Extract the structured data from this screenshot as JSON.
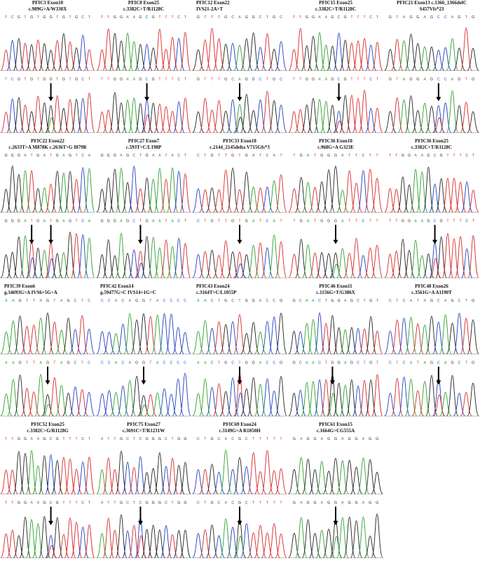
{
  "colors": {
    "A": "#2ca02c",
    "C": "#1f3fbf",
    "G": "#222222",
    "T": "#d62728",
    "arrow": "#000000"
  },
  "panels": [
    {
      "title": "PFIC3  Exon10",
      "mutation": "c.989G>A/W330X",
      "seq": "TCGTGTGGTGTGCT",
      "mut_index": 7,
      "align": "center",
      "arrows": 1
    },
    {
      "title": "PFIC8  Exon25",
      "mutation": "c.3382C>T/R1128C",
      "seq": "TTGGAAGCGTTTCT",
      "mut_index": 7,
      "align": "center",
      "arrows": 1
    },
    {
      "title": "PFIC12  Exon22",
      "mutation": "IVS21-2A>T",
      "seq": "GTTTGCAGGCTGC",
      "mut_index": 6,
      "align": "left",
      "arrows": 1
    },
    {
      "title": "PFIC15  Exon25",
      "mutation": "c.3382C>T/R1128C",
      "seq": "TTGGAAGCGTTTCT",
      "mut_index": 7,
      "align": "center",
      "arrows": 1
    },
    {
      "title": "PFIC21  Exon13  c.1366_1366delC",
      "mutation": "S457Vfs*23",
      "seq": "GTAGGAGCCAGTG",
      "mut_index": 7,
      "align": "right",
      "arrows": 1
    },
    {
      "title": "PFIC22  Exon22",
      "mutation": "c.2633T>A  M878K  c.2636T>G  I879R",
      "seq": "GGGATGATGAGTCA",
      "mut_index": 4,
      "mut_index2": 7,
      "align": "center",
      "arrows": 2
    },
    {
      "title": "PFIC27  Exon7",
      "mutation": "c.593T>C/L198P",
      "seq": "GGGAGCTGAATACT",
      "mut_index": 6,
      "align": "center",
      "arrows": 1
    },
    {
      "title": "PFIC33  Exon18",
      "mutation": "c.2144_2145delta  V715Gfs*3",
      "seq": "CTGTTGTGATCAT",
      "mut_index": 6,
      "align": "center",
      "arrows": 1
    },
    {
      "title": "PFIC36  Exon10",
      "mutation": "c.968G>A  G323E",
      "seq": "TGATGGGATTCTT",
      "mut_index": 6,
      "align": "center",
      "arrows": 1
    },
    {
      "title": "PFIC36  Exon25",
      "mutation": "c.3382C>T/R1128C",
      "seq": "TTGGAAGCGTTTCT",
      "mut_index": 7,
      "align": "center",
      "arrows": 1
    },
    {
      "title": "PFIC39  Exon6",
      "mutation": "g.34693G>A  IVS6+5G>A",
      "seq": "AAGTTAGTAGCTC",
      "mut_index": 6,
      "align": "left",
      "arrows": 1
    },
    {
      "title": "PFIC42  Exon14",
      "mutation": "g.59477G>C  IVS14+1G>C",
      "seq": "CCACAGGTACCCC",
      "mut_index": 6,
      "align": "left",
      "arrows": 1
    },
    {
      "title": "PFIC43  Exon24",
      "mutation": "c.3164T>C/L1055P",
      "seq": "AACTGCTGGACCG",
      "mut_index": 6,
      "align": "left",
      "arrows": 1
    },
    {
      "title": "PFIC46  Exon11",
      "mutation": "c.1156G>T/G386X",
      "seq": "GCAACTGGAGCTGT",
      "mut_index": 6,
      "align": "center",
      "arrows": 1
    },
    {
      "title": "PFIC48  Exon26",
      "mutation": "c.3561G>A  A1190T",
      "seq": "CTCATAGCAGCTG",
      "mut_index": 7,
      "align": "center",
      "arrows": 1
    },
    {
      "title": "PFIC52  Exon25",
      "mutation": "c.3382C>G/R1128G",
      "seq": "TTGGAAGCGTTTCT",
      "mut_index": 7,
      "align": "center",
      "arrows": 1
    },
    {
      "title": "PFIC75  Exon27",
      "mutation": "c.3691C>T/R1231W",
      "seq": "ATTGCTCGGGCTGG",
      "mut_index": 6,
      "align": "center",
      "arrows": 1
    },
    {
      "title": "PFIC69  Exon24",
      "mutation": "c.3149G>A  R1050H",
      "seq": "CTGCACGCTTTTT",
      "mut_index": 6,
      "align": "center",
      "arrows": 1
    },
    {
      "title": "PFIC61  Exon15",
      "mutation": "c.1664G>CG555A",
      "seq": "GAGGAGGAGGAGG",
      "mut_index": 6,
      "align": "center",
      "arrows": 1
    }
  ]
}
